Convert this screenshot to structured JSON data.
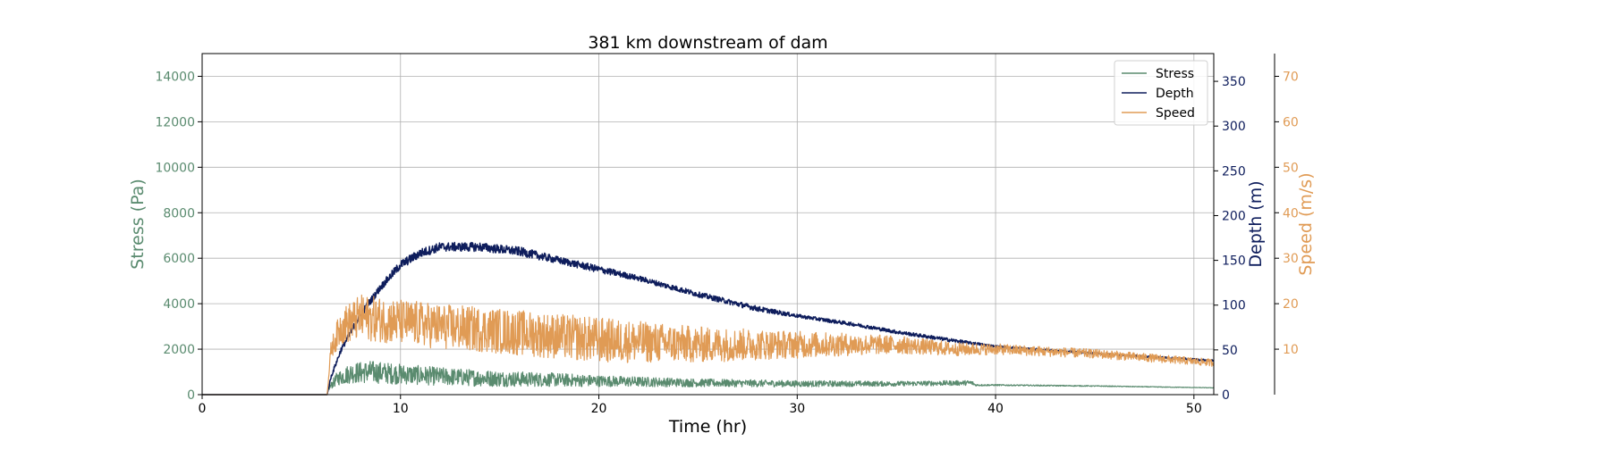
{
  "chart_data": {
    "type": "line",
    "title": "381 km downstream of dam",
    "xlabel": "Time (hr)",
    "xlim": [
      0,
      51
    ],
    "xticks": [
      0,
      10,
      20,
      30,
      40,
      50
    ],
    "grid": true,
    "legend_position": "top-right",
    "axes": {
      "stress": {
        "label": "Stress (Pa)",
        "color": "#5a8b6f",
        "ylim": [
          0,
          15000
        ],
        "ticks": [
          0,
          2000,
          4000,
          6000,
          8000,
          10000,
          12000,
          14000
        ],
        "side": "left"
      },
      "depth": {
        "label": "Depth (m)",
        "color": "#0e1d5c",
        "ylim": [
          0,
          381
        ],
        "ticks": [
          0,
          50,
          100,
          150,
          200,
          250,
          300,
          350
        ],
        "side": "right"
      },
      "speed": {
        "label": "Speed (m/s)",
        "color": "#e09b55",
        "ylim": [
          0,
          75
        ],
        "ticks": [
          10,
          20,
          30,
          40,
          50,
          60,
          70
        ],
        "side": "right-offset"
      }
    },
    "series": [
      {
        "name": "Stress",
        "axis": "stress",
        "color": "#5a8b6f",
        "x": [
          0,
          6.3,
          6.4,
          6.8,
          7.5,
          8.5,
          10,
          12,
          15,
          18,
          20,
          25,
          30,
          35,
          38.8,
          39,
          40,
          45,
          51
        ],
        "values": [
          0,
          0,
          300,
          700,
          950,
          1000,
          900,
          800,
          700,
          650,
          600,
          520,
          480,
          480,
          520,
          420,
          420,
          380,
          300
        ],
        "noise": [
          0,
          0,
          100,
          300,
          450,
          500,
          450,
          400,
          350,
          300,
          250,
          180,
          140,
          110,
          110,
          40,
          30,
          20,
          10
        ]
      },
      {
        "name": "Depth",
        "axis": "depth",
        "color": "#0e1d5c",
        "x": [
          0,
          6.3,
          6.5,
          7,
          8,
          9,
          10,
          11,
          12,
          14,
          16,
          18,
          20,
          22,
          25,
          28,
          30,
          33,
          35,
          38,
          40,
          45,
          51
        ],
        "values": [
          0,
          0,
          20,
          50,
          90,
          120,
          145,
          158,
          165,
          165,
          160,
          150,
          140,
          130,
          112,
          96,
          88,
          78,
          70,
          60,
          54,
          46,
          38
        ],
        "noise": [
          0,
          0,
          2,
          3,
          4,
          4,
          5,
          5,
          5,
          5,
          5,
          4,
          4,
          3,
          3,
          3,
          2,
          2,
          2,
          2,
          1,
          1,
          1
        ]
      },
      {
        "name": "Speed",
        "axis": "speed",
        "color": "#e09b55",
        "x": [
          0,
          6.3,
          6.5,
          7,
          8,
          10,
          12,
          15,
          20,
          25,
          30,
          35,
          38,
          40,
          45,
          51
        ],
        "values": [
          0,
          0,
          10,
          15,
          17,
          16,
          15,
          14,
          12,
          11,
          11,
          11,
          10,
          10,
          9,
          7
        ],
        "noise": [
          0,
          0,
          2,
          4,
          5,
          5,
          5,
          5,
          5,
          4,
          3,
          2,
          1.5,
          1.2,
          1,
          0.8
        ]
      }
    ]
  }
}
